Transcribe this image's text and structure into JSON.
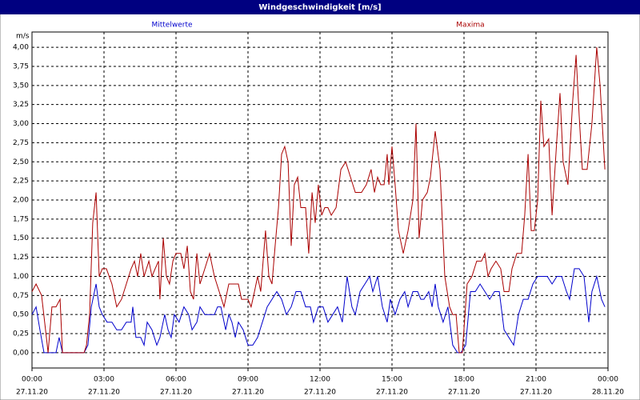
{
  "chart_data": {
    "type": "line",
    "title": "Windgeschwindigkeit [m/s]",
    "y_label": "m/s",
    "grid": true,
    "xlim": [
      0,
      24
    ],
    "ylim": [
      -0.2,
      4.2
    ],
    "xticks": [
      {
        "value": 0,
        "label": "00:00",
        "date": "27.11.20"
      },
      {
        "value": 3,
        "label": "03:00",
        "date": "27.11.20"
      },
      {
        "value": 6,
        "label": "06:00",
        "date": "27.11.20"
      },
      {
        "value": 9,
        "label": "09:00",
        "date": "27.11.20"
      },
      {
        "value": 12,
        "label": "12:00",
        "date": "27.11.20"
      },
      {
        "value": 15,
        "label": "15:00",
        "date": "27.11.20"
      },
      {
        "value": 18,
        "label": "18:00",
        "date": "27.11.20"
      },
      {
        "value": 21,
        "label": "21:00",
        "date": "27.11.20"
      },
      {
        "value": 24,
        "label": "00:00",
        "date": "28.11.20"
      }
    ],
    "yticks": [
      {
        "value": 0,
        "label": "0,00"
      },
      {
        "value": 0.25,
        "label": "0,25"
      },
      {
        "value": 0.5,
        "label": "0,50"
      },
      {
        "value": 0.75,
        "label": "0,75"
      },
      {
        "value": 1,
        "label": "1,00"
      },
      {
        "value": 1.25,
        "label": "1,25"
      },
      {
        "value": 1.5,
        "label": "1,50"
      },
      {
        "value": 1.75,
        "label": "1,75"
      },
      {
        "value": 2,
        "label": "2,00"
      },
      {
        "value": 2.25,
        "label": "2,25"
      },
      {
        "value": 2.5,
        "label": "2,50"
      },
      {
        "value": 2.75,
        "label": "2,75"
      },
      {
        "value": 3,
        "label": "3,00"
      },
      {
        "value": 3.25,
        "label": "3,25"
      },
      {
        "value": 3.5,
        "label": "3,50"
      },
      {
        "value": 3.75,
        "label": "3,75"
      },
      {
        "value": 4,
        "label": "4,00"
      }
    ],
    "series": [
      {
        "name": "Mittelwerte",
        "color": "#0000cc",
        "x": [
          0,
          0.17,
          0.33,
          0.5,
          0.67,
          0.87,
          1,
          1.13,
          1.27,
          1.67,
          2.17,
          2.33,
          2.47,
          2.67,
          2.8,
          2.93,
          3.13,
          3.33,
          3.53,
          3.73,
          3.93,
          4.13,
          4.2,
          4.33,
          4.53,
          4.67,
          4.8,
          5,
          5.2,
          5.33,
          5.53,
          5.67,
          5.8,
          5.93,
          6.13,
          6.33,
          6.53,
          6.67,
          6.87,
          7,
          7.2,
          7.4,
          7.6,
          7.73,
          7.87,
          8.07,
          8.2,
          8.33,
          8.47,
          8.6,
          8.8,
          9,
          9.2,
          9.4,
          9.6,
          9.8,
          10,
          10.2,
          10.4,
          10.6,
          10.8,
          11,
          11.2,
          11.4,
          11.6,
          11.73,
          11.93,
          12.13,
          12.33,
          12.53,
          12.73,
          12.93,
          13.13,
          13.33,
          13.47,
          13.67,
          13.87,
          14.07,
          14.2,
          14.4,
          14.6,
          14.8,
          14.93,
          15.13,
          15.33,
          15.53,
          15.67,
          15.87,
          16.07,
          16.2,
          16.33,
          16.53,
          16.67,
          16.8,
          16.93,
          17.13,
          17.33,
          17.53,
          17.73,
          17.87,
          18.07,
          18.27,
          18.47,
          18.67,
          18.87,
          19.07,
          19.27,
          19.47,
          19.67,
          19.87,
          20.07,
          20.27,
          20.47,
          20.67,
          20.87,
          21.07,
          21.27,
          21.47,
          21.67,
          21.87,
          22.07,
          22.27,
          22.4,
          22.6,
          22.8,
          23,
          23.2,
          23.33,
          23.53,
          23.73,
          23.87
        ],
        "values": [
          0.5,
          0.6,
          0.3,
          0,
          0,
          0,
          0,
          0.2,
          0,
          0,
          0,
          0.1,
          0.6,
          0.9,
          0.6,
          0.5,
          0.4,
          0.4,
          0.3,
          0.3,
          0.4,
          0.4,
          0.6,
          0.2,
          0.2,
          0.1,
          0.4,
          0.3,
          0.1,
          0.2,
          0.5,
          0.3,
          0.2,
          0.5,
          0.4,
          0.6,
          0.5,
          0.3,
          0.4,
          0.6,
          0.5,
          0.5,
          0.5,
          0.6,
          0.6,
          0.3,
          0.5,
          0.4,
          0.2,
          0.4,
          0.3,
          0.1,
          0.1,
          0.2,
          0.4,
          0.6,
          0.7,
          0.8,
          0.7,
          0.5,
          0.6,
          0.8,
          0.8,
          0.6,
          0.6,
          0.4,
          0.6,
          0.6,
          0.4,
          0.5,
          0.6,
          0.4,
          1.0,
          0.6,
          0.5,
          0.8,
          0.9,
          1.0,
          0.8,
          1.0,
          0.6,
          0.4,
          0.7,
          0.5,
          0.7,
          0.8,
          0.6,
          0.8,
          0.8,
          0.7,
          0.7,
          0.8,
          0.6,
          0.9,
          0.6,
          0.4,
          0.6,
          0.1,
          0,
          0,
          0.1,
          0.8,
          0.8,
          0.9,
          0.8,
          0.7,
          0.8,
          0.8,
          0.3,
          0.2,
          0.1,
          0.5,
          0.7,
          0.7,
          0.9,
          1.0,
          1.0,
          1.0,
          0.9,
          1.0,
          1.0,
          0.8,
          0.7,
          1.1,
          1.1,
          1.0,
          0.4,
          0.8,
          1.0,
          0.7,
          0.6
        ]
      },
      {
        "name": "Maxima",
        "color": "#aa0000",
        "x": [
          0,
          0.17,
          0.4,
          0.6,
          0.67,
          0.83,
          1,
          1.17,
          1.27,
          1.5,
          2.17,
          2.27,
          2.4,
          2.53,
          2.67,
          2.8,
          2.93,
          3.1,
          3.33,
          3.53,
          3.73,
          3.93,
          4.13,
          4.27,
          4.4,
          4.53,
          4.67,
          4.87,
          5,
          5.13,
          5.27,
          5.33,
          5.47,
          5.6,
          5.73,
          5.87,
          6,
          6.2,
          6.33,
          6.47,
          6.6,
          6.73,
          6.87,
          7,
          7.2,
          7.4,
          7.6,
          7.8,
          8,
          8.2,
          8.4,
          8.6,
          8.73,
          8.87,
          9,
          9.13,
          9.27,
          9.4,
          9.53,
          9.73,
          9.87,
          10,
          10.13,
          10.27,
          10.4,
          10.53,
          10.67,
          10.8,
          10.93,
          11.07,
          11.2,
          11.4,
          11.53,
          11.67,
          11.8,
          11.93,
          12.07,
          12.2,
          12.33,
          12.47,
          12.67,
          12.87,
          13.07,
          13.27,
          13.47,
          13.73,
          13.93,
          14.13,
          14.27,
          14.4,
          14.53,
          14.67,
          14.8,
          14.87,
          15,
          15.13,
          15.27,
          15.47,
          15.67,
          15.87,
          16,
          16.13,
          16.27,
          16.47,
          16.6,
          16.8,
          17,
          17.2,
          17.4,
          17.53,
          17.67,
          17.8,
          17.93,
          18.13,
          18.33,
          18.53,
          18.73,
          18.87,
          19,
          19.13,
          19.33,
          19.53,
          19.67,
          19.87,
          20,
          20.2,
          20.4,
          20.53,
          20.67,
          20.8,
          20.93,
          21.07,
          21.2,
          21.33,
          21.53,
          21.67,
          21.87,
          22,
          22.13,
          22.33,
          22.53,
          22.67,
          22.8,
          22.93,
          23.13,
          23.33,
          23.53,
          23.67,
          23.87
        ],
        "values": [
          0.8,
          0.9,
          0.75,
          0.2,
          0,
          0.6,
          0.6,
          0.7,
          0,
          0,
          0,
          0.1,
          0.5,
          1.7,
          2.1,
          1.0,
          1.1,
          1.1,
          0.9,
          0.6,
          0.7,
          0.9,
          1.1,
          1.2,
          1.0,
          1.3,
          1.0,
          1.2,
          1.0,
          1.1,
          1.2,
          0.7,
          1.5,
          1.0,
          0.9,
          1.2,
          1.3,
          1.3,
          1.1,
          1.4,
          0.8,
          0.7,
          1.3,
          0.9,
          1.1,
          1.3,
          1.0,
          0.8,
          0.6,
          0.9,
          0.9,
          0.9,
          0.7,
          0.7,
          0.7,
          0.6,
          0.8,
          1.0,
          0.8,
          1.6,
          1.0,
          0.9,
          1.4,
          1.9,
          2.6,
          2.7,
          2.5,
          1.4,
          2.2,
          2.3,
          1.9,
          1.9,
          1.3,
          2.1,
          1.7,
          2.2,
          1.8,
          1.9,
          1.9,
          1.8,
          1.9,
          2.4,
          2.5,
          2.3,
          2.1,
          2.1,
          2.2,
          2.4,
          2.1,
          2.3,
          2.2,
          2.2,
          2.6,
          2.2,
          2.7,
          2.2,
          1.6,
          1.3,
          1.6,
          2.0,
          3.0,
          1.5,
          2.0,
          2.1,
          2.3,
          2.9,
          2.4,
          1.0,
          0.6,
          0.5,
          0.5,
          0,
          0,
          0.9,
          1.0,
          1.2,
          1.2,
          1.3,
          1.0,
          1.1,
          1.2,
          1.1,
          0.8,
          0.8,
          1.1,
          1.3,
          1.3,
          1.8,
          2.6,
          1.6,
          1.6,
          2.0,
          3.3,
          2.7,
          2.8,
          1.8,
          2.8,
          3.4,
          2.5,
          2.2,
          3.3,
          3.9,
          3.1,
          2.4,
          2.4,
          3.0,
          4.0,
          3.5,
          2.4
        ]
      }
    ]
  }
}
